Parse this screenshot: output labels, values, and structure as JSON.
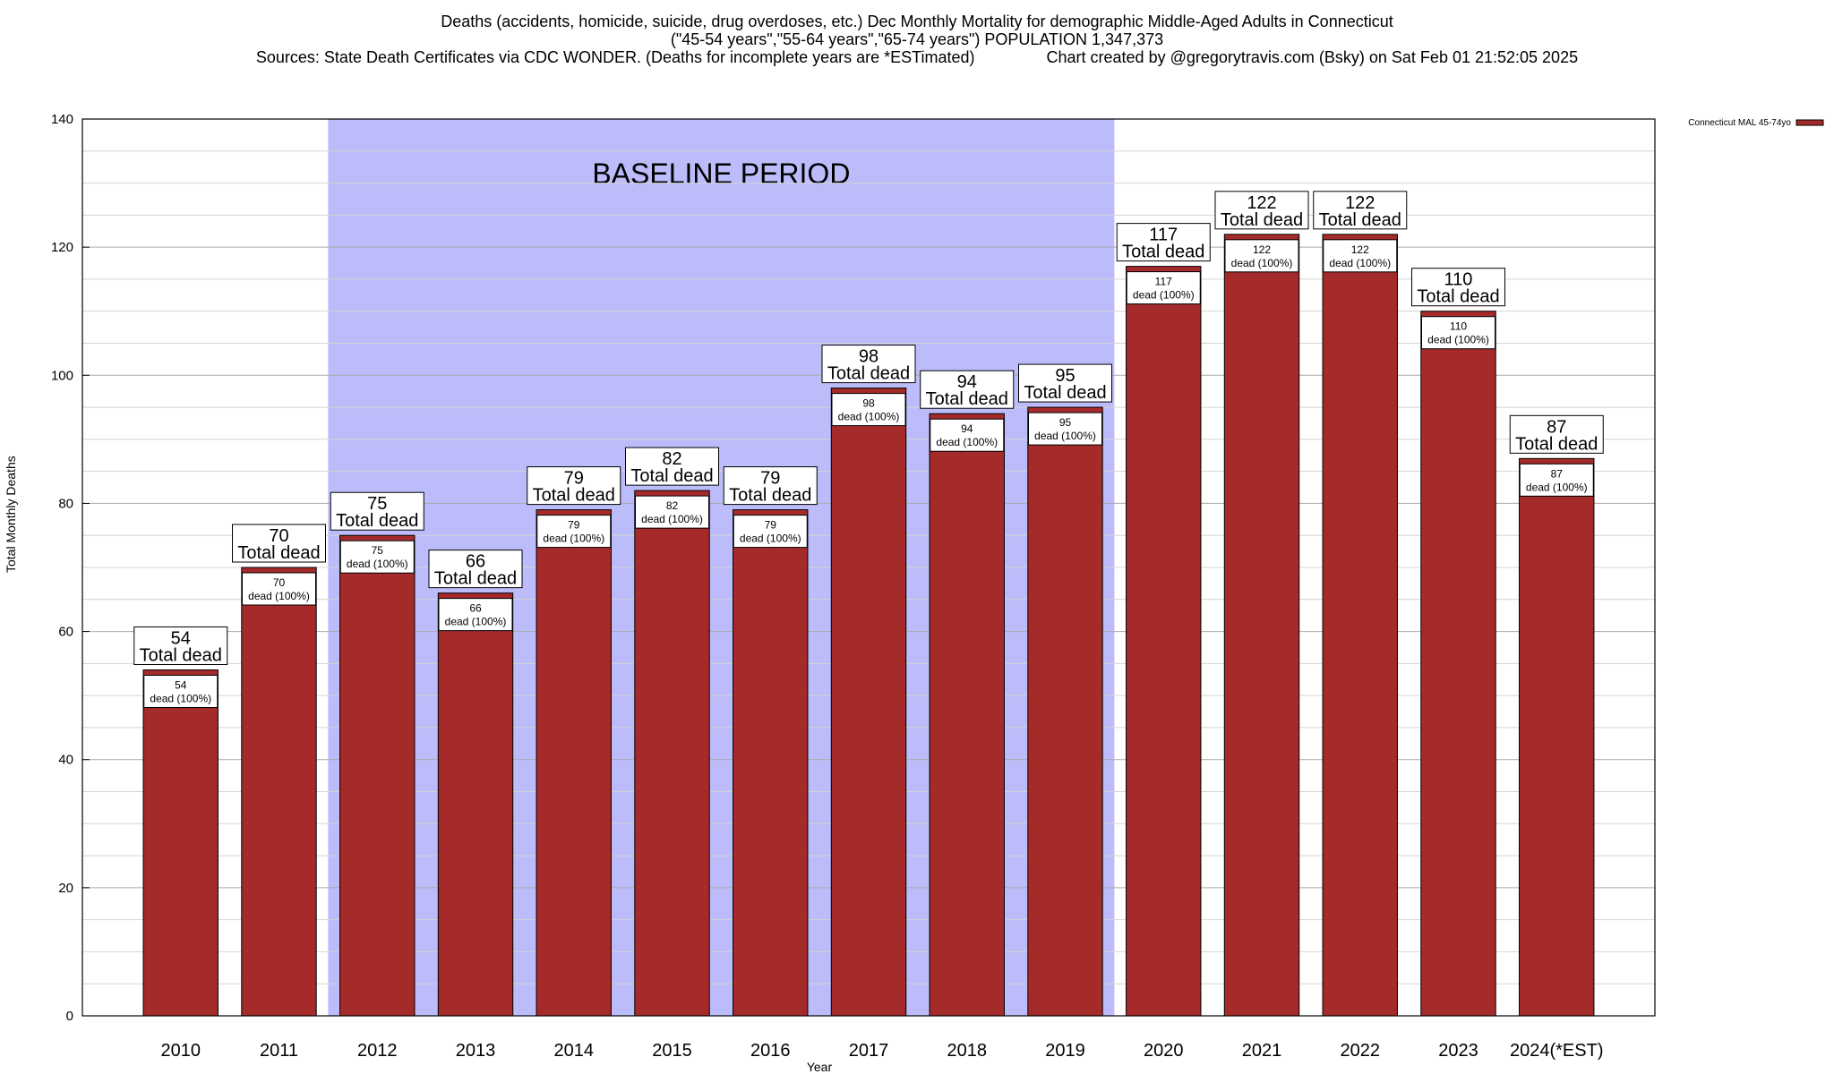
{
  "chart_data": {
    "type": "bar",
    "title_lines": [
      "Deaths (accidents, homicide, suicide, drug overdoses, etc.) Dec Monthly Mortality for demographic Middle-Aged Adults in Connecticut",
      "(\"45-54 years\",\"55-64 years\",\"65-74 years\") POPULATION 1,347,373",
      "Sources: State Death Certificates via CDC WONDER. (Deaths for incomplete years are *ESTimated)                Chart created by @gregorytravis.com (Bsky) on Sat Feb 01 21:52:05 2025"
    ],
    "xlabel": "Year",
    "ylabel": "Total Monthly Deaths",
    "ylim": [
      0,
      140
    ],
    "yticks": [
      0,
      20,
      40,
      60,
      80,
      100,
      120,
      140
    ],
    "grid": true,
    "categories": [
      "2010",
      "2011",
      "2012",
      "2013",
      "2014",
      "2015",
      "2016",
      "2017",
      "2018",
      "2019",
      "2020",
      "2021",
      "2022",
      "2023",
      "2024(*EST)"
    ],
    "series": [
      {
        "name": "Connecticut MAL 45-74yo",
        "values": [
          54,
          70,
          75,
          66,
          79,
          82,
          79,
          98,
          94,
          95,
          117,
          122,
          122,
          110,
          87
        ]
      }
    ],
    "total_label": "Total dead",
    "bar_label_suffix": "dead (100%)",
    "baseline_band": {
      "label": "BASELINE PERIOD",
      "from": "2012",
      "to": "2019"
    },
    "legend_position": "top-right",
    "colors": {
      "bar": "#a52a2a",
      "band": "#bcbcfa",
      "grid": "#bbbbbb"
    }
  }
}
